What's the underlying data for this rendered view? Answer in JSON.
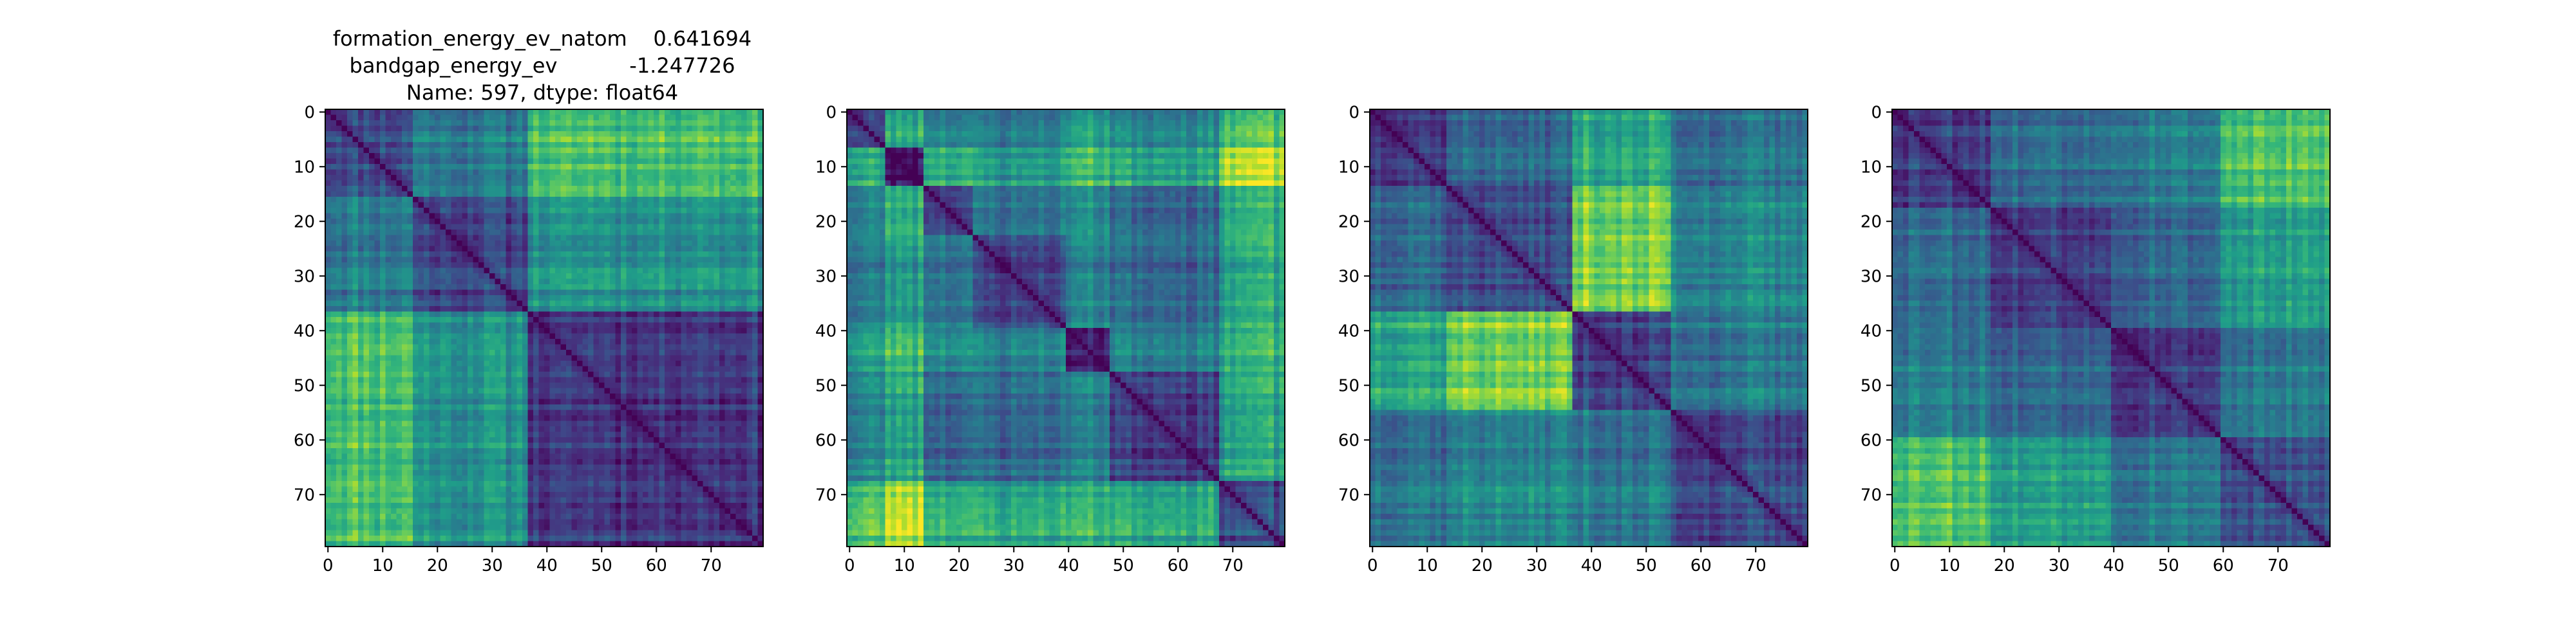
{
  "figure_title": {
    "lines": [
      "formation_energy_ev_natom    0.641694",
      "bandgap_energy_ev           -1.247726",
      "Name: 597, dtype: float64"
    ]
  },
  "colormap": [
    "#440154",
    "#482878",
    "#3e4989",
    "#31688e",
    "#26828e",
    "#1f9e89",
    "#35b779",
    "#6ece58",
    "#b5de2b",
    "#fde725"
  ],
  "chart_data": [
    {
      "type": "heatmap",
      "size": 80,
      "xlim": [
        0,
        79
      ],
      "ylim": [
        0,
        79
      ],
      "xticks": [
        0,
        10,
        20,
        30,
        40,
        50,
        60,
        70
      ],
      "yticks": [
        0,
        10,
        20,
        30,
        40,
        50,
        60,
        70
      ],
      "blocks": [
        [
          0,
          16
        ],
        [
          16,
          37
        ],
        [
          37,
          80
        ]
      ],
      "block_distance": [
        [
          0.25,
          0.42,
          0.72
        ],
        [
          0.42,
          0.22,
          0.52
        ],
        [
          0.72,
          0.52,
          0.18
        ]
      ],
      "seed": 11
    },
    {
      "type": "heatmap",
      "size": 80,
      "xlim": [
        0,
        79
      ],
      "ylim": [
        0,
        79
      ],
      "xticks": [
        0,
        10,
        20,
        30,
        40,
        50,
        60,
        70
      ],
      "yticks": [
        0,
        10,
        20,
        30,
        40,
        50,
        60,
        70
      ],
      "blocks": [
        [
          0,
          7
        ],
        [
          7,
          14
        ],
        [
          14,
          23
        ],
        [
          23,
          40
        ],
        [
          40,
          48
        ],
        [
          48,
          68
        ],
        [
          68,
          80
        ]
      ],
      "block_distance": [
        [
          0.22,
          0.6,
          0.45,
          0.4,
          0.55,
          0.45,
          0.7
        ],
        [
          0.6,
          0.05,
          0.65,
          0.55,
          0.7,
          0.6,
          0.9
        ],
        [
          0.45,
          0.65,
          0.25,
          0.4,
          0.5,
          0.35,
          0.65
        ],
        [
          0.4,
          0.55,
          0.4,
          0.2,
          0.45,
          0.35,
          0.6
        ],
        [
          0.55,
          0.7,
          0.5,
          0.45,
          0.1,
          0.45,
          0.65
        ],
        [
          0.45,
          0.6,
          0.35,
          0.35,
          0.45,
          0.2,
          0.6
        ],
        [
          0.7,
          0.9,
          0.65,
          0.6,
          0.65,
          0.6,
          0.25
        ]
      ],
      "seed": 23
    },
    {
      "type": "heatmap",
      "size": 80,
      "xlim": [
        0,
        79
      ],
      "ylim": [
        0,
        79
      ],
      "xticks": [
        0,
        10,
        20,
        30,
        40,
        50,
        60,
        70
      ],
      "yticks": [
        0,
        10,
        20,
        30,
        40,
        50,
        60,
        70
      ],
      "blocks": [
        [
          0,
          14
        ],
        [
          14,
          37
        ],
        [
          37,
          55
        ],
        [
          55,
          80
        ]
      ],
      "block_distance": [
        [
          0.22,
          0.35,
          0.62,
          0.4
        ],
        [
          0.35,
          0.22,
          0.78,
          0.45
        ],
        [
          0.62,
          0.78,
          0.2,
          0.4
        ],
        [
          0.4,
          0.45,
          0.4,
          0.22
        ]
      ],
      "seed": 37
    },
    {
      "type": "heatmap",
      "size": 80,
      "xlim": [
        0,
        79
      ],
      "ylim": [
        0,
        79
      ],
      "xticks": [
        0,
        10,
        20,
        30,
        40,
        50,
        60,
        70
      ],
      "yticks": [
        0,
        10,
        20,
        30,
        40,
        50,
        60,
        70
      ],
      "blocks": [
        [
          0,
          18
        ],
        [
          18,
          40
        ],
        [
          40,
          60
        ],
        [
          60,
          80
        ]
      ],
      "block_distance": [
        [
          0.22,
          0.38,
          0.45,
          0.72
        ],
        [
          0.38,
          0.2,
          0.35,
          0.55
        ],
        [
          0.45,
          0.35,
          0.2,
          0.4
        ],
        [
          0.72,
          0.55,
          0.4,
          0.22
        ]
      ],
      "seed": 53
    }
  ]
}
